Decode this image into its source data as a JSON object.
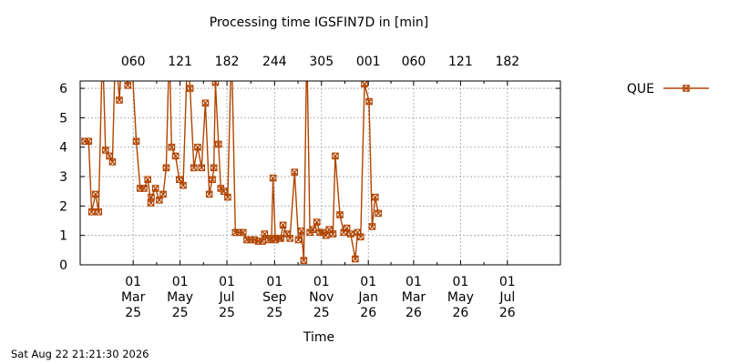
{
  "chart_data": {
    "type": "line",
    "title": "Processing time IGSFIN7D in [min]",
    "xlabel": "Time",
    "ylabel": "",
    "ylim": [
      0,
      6.25
    ],
    "xlim": [
      82,
      707
    ],
    "yticks": [
      0,
      1,
      2,
      3,
      4,
      5,
      6
    ],
    "grid": true,
    "legend_position": "right",
    "footer": "Sat Aug 22 21:21:30 2026",
    "top_axis": {
      "label": "",
      "ticks": [
        {
          "t": 151,
          "label": "060"
        },
        {
          "t": 212,
          "label": "121"
        },
        {
          "t": 273,
          "label": "182"
        },
        {
          "t": 335,
          "label": "244"
        },
        {
          "t": 396,
          "label": "305"
        },
        {
          "t": 457,
          "label": "001"
        },
        {
          "t": 516,
          "label": "060"
        },
        {
          "t": 577,
          "label": "121"
        },
        {
          "t": 638,
          "label": "182"
        }
      ]
    },
    "bottom_axis": {
      "ticks": [
        {
          "t": 151,
          "day": "01",
          "month": "Mar",
          "year": "25"
        },
        {
          "t": 212,
          "day": "01",
          "month": "May",
          "year": "25"
        },
        {
          "t": 273,
          "day": "01",
          "month": "Jul",
          "year": "25"
        },
        {
          "t": 335,
          "day": "01",
          "month": "Sep",
          "year": "25"
        },
        {
          "t": 396,
          "day": "01",
          "month": "Nov",
          "year": "25"
        },
        {
          "t": 457,
          "day": "01",
          "month": "Jan",
          "year": "26"
        },
        {
          "t": 516,
          "day": "01",
          "month": "Mar",
          "year": "26"
        },
        {
          "t": 577,
          "day": "01",
          "month": "May",
          "year": "26"
        },
        {
          "t": 638,
          "day": "01",
          "month": "Jul",
          "year": "26"
        }
      ]
    },
    "series": [
      {
        "name": "QUE",
        "color": "#b04400",
        "marker": "x-square",
        "points": [
          {
            "t": 88,
            "v": 4.2,
            "m": true
          },
          {
            "t": 93,
            "v": 4.2,
            "m": true
          },
          {
            "t": 97,
            "v": 1.8,
            "m": true
          },
          {
            "t": 102,
            "v": 2.4,
            "m": true
          },
          {
            "t": 106,
            "v": 1.8,
            "m": true
          },
          {
            "t": 111,
            "v": 7.5,
            "m": false
          },
          {
            "t": 115,
            "v": 3.9,
            "m": true
          },
          {
            "t": 120,
            "v": 3.7,
            "m": true
          },
          {
            "t": 124,
            "v": 3.5,
            "m": true
          },
          {
            "t": 128,
            "v": 7.5,
            "m": false
          },
          {
            "t": 133,
            "v": 5.6,
            "m": true
          },
          {
            "t": 137,
            "v": 7.5,
            "m": false
          },
          {
            "t": 144,
            "v": 6.1,
            "m": true
          },
          {
            "t": 148,
            "v": 7.5,
            "m": false
          },
          {
            "t": 155,
            "v": 4.2,
            "m": true
          },
          {
            "t": 160,
            "v": 2.6,
            "m": true
          },
          {
            "t": 165,
            "v": 2.6,
            "m": true
          },
          {
            "t": 170,
            "v": 2.9,
            "m": true
          },
          {
            "t": 174,
            "v": 2.1,
            "m": true
          },
          {
            "t": 174.5,
            "v": 2.3,
            "m": true
          },
          {
            "t": 180,
            "v": 2.6,
            "m": true
          },
          {
            "t": 185,
            "v": 2.2,
            "m": true
          },
          {
            "t": 190,
            "v": 2.4,
            "m": true
          },
          {
            "t": 194,
            "v": 3.3,
            "m": true
          },
          {
            "t": 198,
            "v": 7.5,
            "m": false
          },
          {
            "t": 201,
            "v": 4.0,
            "m": true
          },
          {
            "t": 206,
            "v": 3.7,
            "m": true
          },
          {
            "t": 211,
            "v": 2.9,
            "m": true
          },
          {
            "t": 216,
            "v": 2.7,
            "m": true
          },
          {
            "t": 222,
            "v": 7.5,
            "m": false
          },
          {
            "t": 225,
            "v": 6.0,
            "m": true
          },
          {
            "t": 230,
            "v": 3.3,
            "m": true
          },
          {
            "t": 235,
            "v": 4.0,
            "m": true
          },
          {
            "t": 240,
            "v": 3.3,
            "m": true
          },
          {
            "t": 245,
            "v": 5.5,
            "m": true
          },
          {
            "t": 250,
            "v": 2.4,
            "m": true
          },
          {
            "t": 254,
            "v": 2.9,
            "m": true
          },
          {
            "t": 256,
            "v": 3.3,
            "m": true
          },
          {
            "t": 258,
            "v": 6.2,
            "m": true
          },
          {
            "t": 262,
            "v": 4.1,
            "m": true
          },
          {
            "t": 265,
            "v": 2.6,
            "m": true
          },
          {
            "t": 269,
            "v": 2.5,
            "m": true
          },
          {
            "t": 274,
            "v": 2.3,
            "m": true
          },
          {
            "t": 279,
            "v": 7.5,
            "m": false
          },
          {
            "t": 284,
            "v": 1.1,
            "m": true
          },
          {
            "t": 289,
            "v": 1.1,
            "m": true
          },
          {
            "t": 294,
            "v": 1.1,
            "m": true
          },
          {
            "t": 299,
            "v": 0.85,
            "m": true
          },
          {
            "t": 304,
            "v": 0.85,
            "m": true
          },
          {
            "t": 309,
            "v": 0.85,
            "m": true
          },
          {
            "t": 314,
            "v": 0.8,
            "m": true
          },
          {
            "t": 319,
            "v": 0.8,
            "m": true
          },
          {
            "t": 322,
            "v": 1.05,
            "m": true
          },
          {
            "t": 327,
            "v": 0.85,
            "m": true
          },
          {
            "t": 331,
            "v": 0.9,
            "m": true
          },
          {
            "t": 333,
            "v": 2.95,
            "m": true
          },
          {
            "t": 336,
            "v": 0.85,
            "m": true
          },
          {
            "t": 341,
            "v": 0.9,
            "m": true
          },
          {
            "t": 343,
            "v": 0.9,
            "m": true
          },
          {
            "t": 346,
            "v": 1.35,
            "m": true
          },
          {
            "t": 351,
            "v": 1.05,
            "m": true
          },
          {
            "t": 355,
            "v": 0.9,
            "m": true
          },
          {
            "t": 361,
            "v": 3.15,
            "m": true
          },
          {
            "t": 366,
            "v": 0.85,
            "m": true
          },
          {
            "t": 370,
            "v": 1.15,
            "m": true
          },
          {
            "t": 373,
            "v": 0.15,
            "m": true
          },
          {
            "t": 377,
            "v": 7.5,
            "m": false
          },
          {
            "t": 381,
            "v": 1.1,
            "m": true
          },
          {
            "t": 385,
            "v": 1.2,
            "m": true
          },
          {
            "t": 390,
            "v": 1.45,
            "m": true
          },
          {
            "t": 394,
            "v": 1.1,
            "m": true
          },
          {
            "t": 398,
            "v": 1.1,
            "m": true
          },
          {
            "t": 402,
            "v": 1.0,
            "m": true
          },
          {
            "t": 406,
            "v": 1.2,
            "m": true
          },
          {
            "t": 411,
            "v": 1.05,
            "m": true
          },
          {
            "t": 414,
            "v": 3.7,
            "m": true
          },
          {
            "t": 420,
            "v": 1.7,
            "m": true
          },
          {
            "t": 425,
            "v": 1.1,
            "m": true
          },
          {
            "t": 429,
            "v": 1.25,
            "m": true
          },
          {
            "t": 434,
            "v": 1.05,
            "m": true
          },
          {
            "t": 440,
            "v": 0.2,
            "m": true
          },
          {
            "t": 443,
            "v": 1.1,
            "m": true
          },
          {
            "t": 447,
            "v": 0.95,
            "m": true
          },
          {
            "t": 452,
            "v": 6.15,
            "m": true
          },
          {
            "t": 458,
            "v": 5.55,
            "m": true
          },
          {
            "t": 462,
            "v": 1.3,
            "m": true
          },
          {
            "t": 466,
            "v": 2.3,
            "m": true
          },
          {
            "t": 470,
            "v": 1.75,
            "m": true
          }
        ]
      }
    ]
  }
}
